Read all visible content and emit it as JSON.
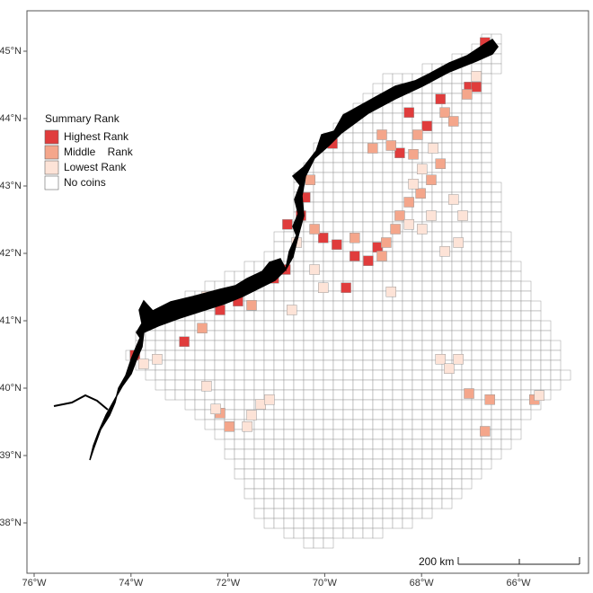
{
  "map": {
    "xticks": [
      {
        "value": -76,
        "label": "76°W"
      },
      {
        "value": -74,
        "label": "74°W"
      },
      {
        "value": -72,
        "label": "72°W"
      },
      {
        "value": -70,
        "label": "70°W"
      },
      {
        "value": -68,
        "label": "68°W"
      },
      {
        "value": -66,
        "label": "66°W"
      }
    ],
    "yticks": [
      {
        "value": 38,
        "label": "38°N"
      },
      {
        "value": 39,
        "label": "39°N"
      },
      {
        "value": 40,
        "label": "40°N"
      },
      {
        "value": 41,
        "label": "41°N"
      },
      {
        "value": 42,
        "label": "42°N"
      },
      {
        "value": 43,
        "label": "43°N"
      },
      {
        "value": 44,
        "label": "44°N"
      },
      {
        "value": 45,
        "label": "45°N"
      }
    ],
    "scale_bar": "200 km",
    "legend": {
      "title": "Summary Rank",
      "items": [
        {
          "label": "Highest Rank",
          "color": "#e03c3c",
          "cells": [
            [
              -66.69,
              45.13
            ],
            [
              -67.02,
              44.47
            ],
            [
              -66.87,
              44.47
            ],
            [
              -67.61,
              44.29
            ],
            [
              -68.26,
              44.09
            ],
            [
              -67.89,
              43.89
            ],
            [
              -68.45,
              43.49
            ],
            [
              -69.84,
              43.63
            ],
            [
              -70.4,
              42.83
            ],
            [
              -70.49,
              42.56
            ],
            [
              -70.77,
              42.43
            ],
            [
              -70.03,
              42.23
            ],
            [
              -69.75,
              42.13
            ],
            [
              -69.38,
              41.96
            ],
            [
              -69.1,
              41.89
            ],
            [
              -68.91,
              42.09
            ],
            [
              -69.56,
              41.49
            ],
            [
              -71.05,
              41.63
            ],
            [
              -70.81,
              41.76
            ],
            [
              -71.79,
              41.29
            ],
            [
              -72.16,
              41.16
            ],
            [
              -73.18,
              41.09
            ],
            [
              -73.46,
              41.03
            ],
            [
              -72.9,
              40.69
            ],
            [
              -73.92,
              40.49
            ]
          ]
        },
        {
          "label": "Middle    Rank",
          "color": "#f4a68b",
          "cells": [
            [
              -67.06,
              44.36
            ],
            [
              -67.52,
              44.09
            ],
            [
              -67.34,
              43.96
            ],
            [
              -68.08,
              43.76
            ],
            [
              -68.82,
              43.76
            ],
            [
              -68.63,
              43.6
            ],
            [
              -69.01,
              43.56
            ],
            [
              -68.17,
              43.47
            ],
            [
              -67.61,
              43.33
            ],
            [
              -67.8,
              43.09
            ],
            [
              -68.02,
              42.89
            ],
            [
              -68.26,
              42.76
            ],
            [
              -68.45,
              42.56
            ],
            [
              -68.54,
              42.36
            ],
            [
              -68.73,
              42.16
            ],
            [
              -68.82,
              41.96
            ],
            [
              -69.38,
              42.23
            ],
            [
              -70.3,
              43.09
            ],
            [
              -70.21,
              42.36
            ],
            [
              -72.16,
              39.63
            ],
            [
              -71.97,
              39.43
            ],
            [
              -66.59,
              39.83
            ],
            [
              -67.02,
              39.92
            ],
            [
              -65.67,
              39.83
            ],
            [
              -66.69,
              39.36
            ],
            [
              -71.51,
              41.23
            ],
            [
              -72.53,
              40.89
            ]
          ]
        },
        {
          "label": "Lowest Rank",
          "color": "#fde3d7",
          "cells": [
            [
              -66.87,
              44.63
            ],
            [
              -67.76,
              43.56
            ],
            [
              -67.99,
              43.25
            ],
            [
              -68.17,
              43.03
            ],
            [
              -68.26,
              42.43
            ],
            [
              -67.99,
              42.36
            ],
            [
              -67.8,
              42.56
            ],
            [
              -67.34,
              42.8
            ],
            [
              -67.15,
              42.56
            ],
            [
              -67.52,
              42.03
            ],
            [
              -67.24,
              42.16
            ],
            [
              -68.63,
              41.43
            ],
            [
              -70.03,
              41.49
            ],
            [
              -70.21,
              41.76
            ],
            [
              -70.58,
              42.16
            ],
            [
              -70.68,
              41.16
            ],
            [
              -67.61,
              40.43
            ],
            [
              -67.43,
              40.29
            ],
            [
              -67.24,
              40.43
            ],
            [
              -71.32,
              39.76
            ],
            [
              -71.51,
              39.6
            ],
            [
              -71.6,
              39.43
            ],
            [
              -71.14,
              39.83
            ],
            [
              -72.44,
              40.03
            ],
            [
              -72.25,
              39.69
            ],
            [
              -65.57,
              39.89
            ],
            [
              -72.44,
              41.36
            ],
            [
              -72.72,
              41.23
            ],
            [
              -73.74,
              40.36
            ],
            [
              -73.46,
              40.43
            ]
          ]
        },
        {
          "label": "No coins",
          "color": "#ffffff",
          "cells": []
        }
      ]
    }
  }
}
